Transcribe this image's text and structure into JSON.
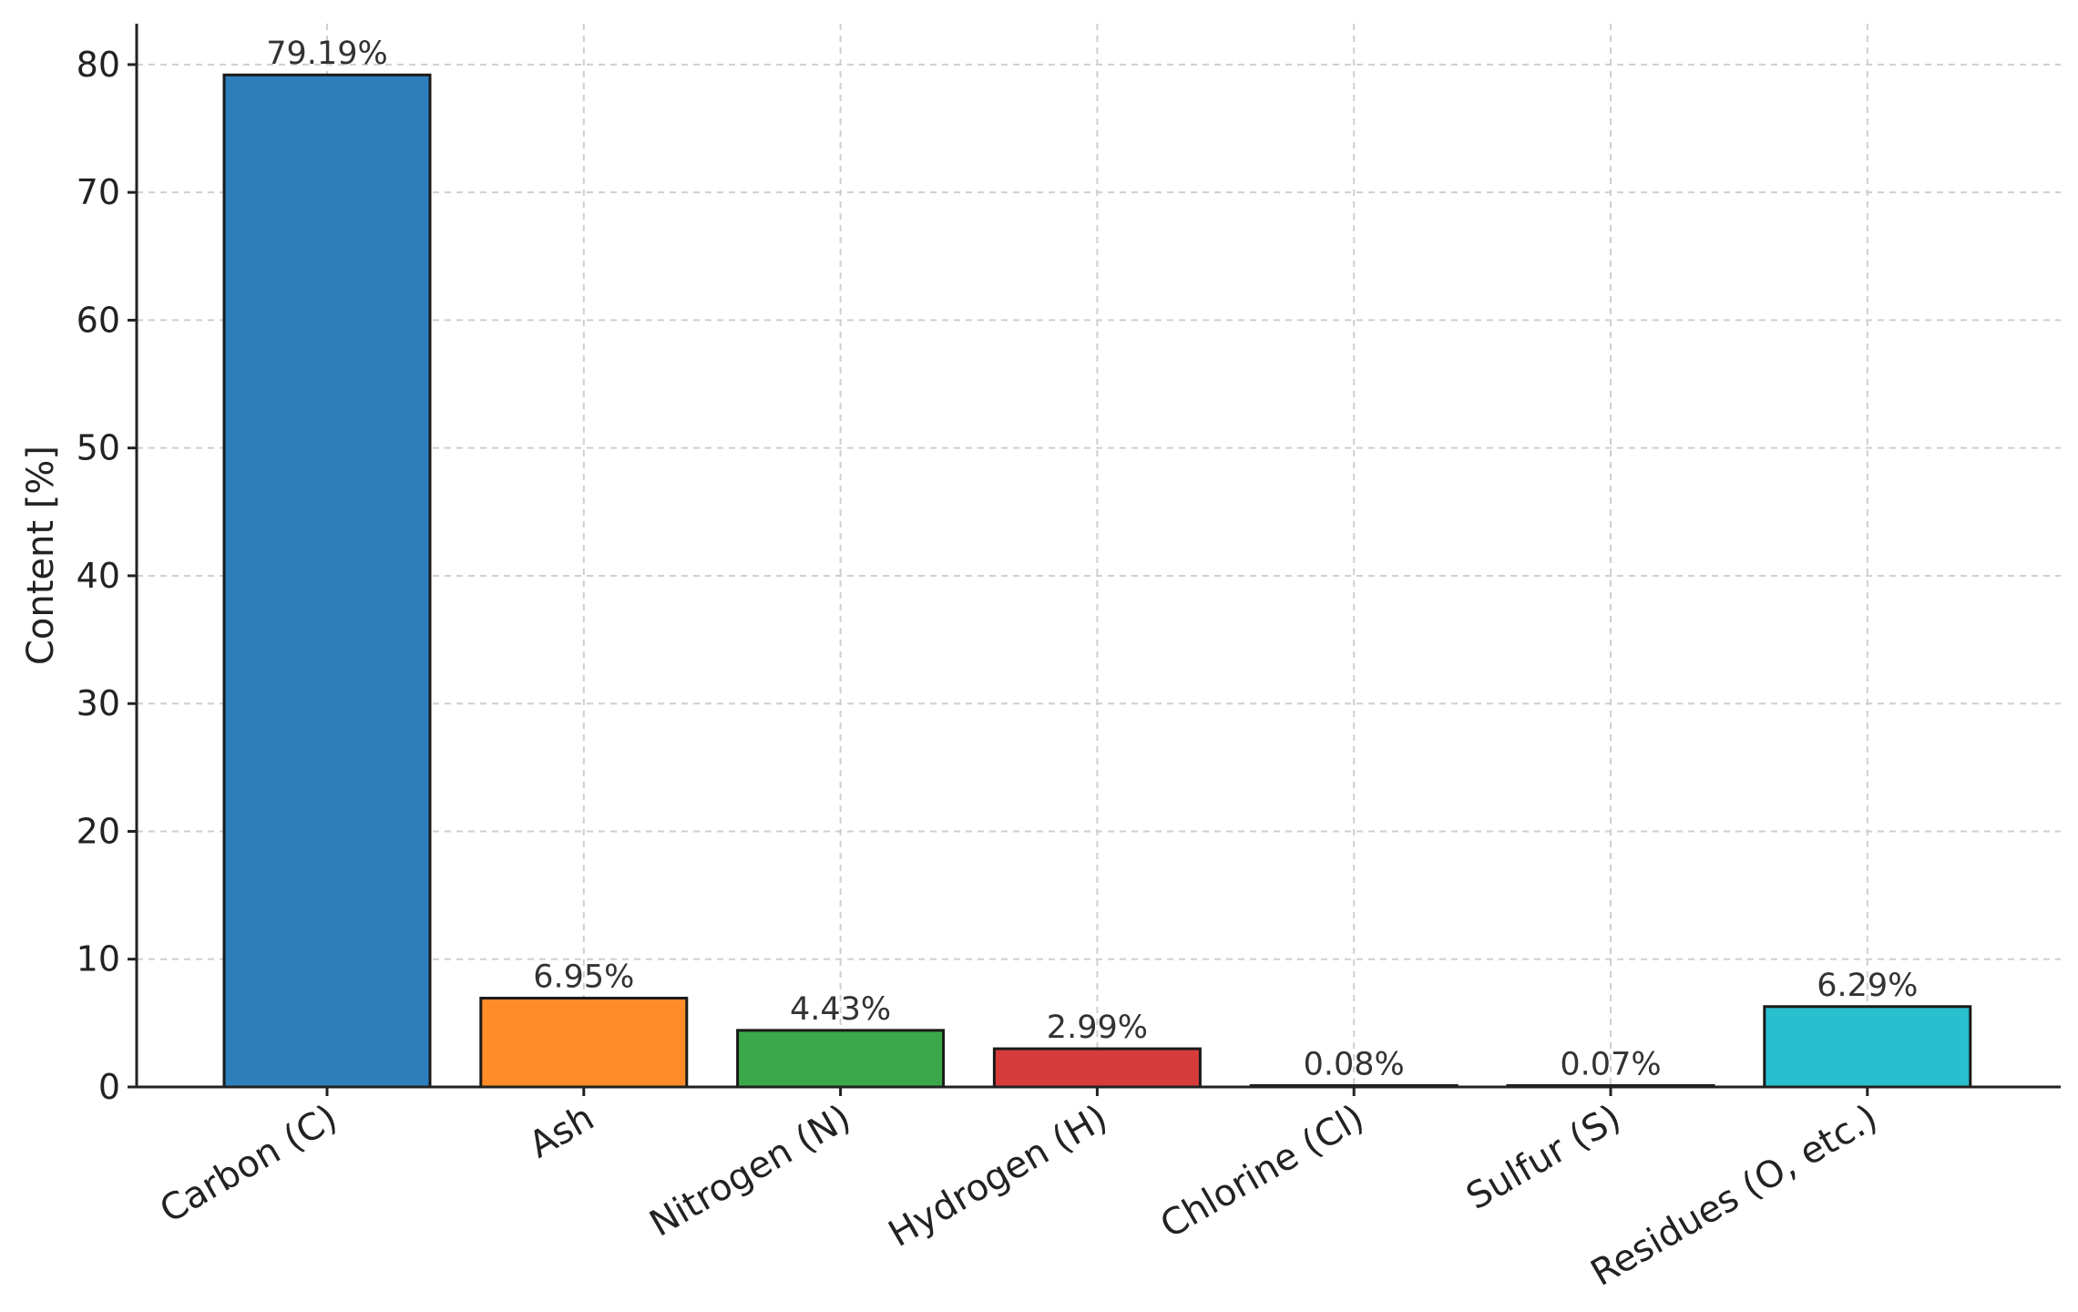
{
  "chart_data": {
    "type": "bar",
    "categories": [
      "Carbon (C)",
      "Ash",
      "Nitrogen (N)",
      "Hydrogen (H)",
      "Chlorine (Cl)",
      "Sulfur (S)",
      "Residues (O, etc.)"
    ],
    "values": [
      79.19,
      6.95,
      4.43,
      2.99,
      0.08,
      0.07,
      6.29
    ],
    "data_labels": [
      "79.19%",
      "6.95%",
      "4.43%",
      "2.99%",
      "0.08%",
      "0.07%",
      "6.29%"
    ],
    "colors": [
      "#2f7ebc",
      "#ff8c28",
      "#3ba94a",
      "#d63c3c",
      "#9a6cc0",
      "#8c5a4e",
      "#2abfcf"
    ],
    "title": "",
    "xlabel": "",
    "ylabel": "Content [%]",
    "ylim": [
      0,
      83.2
    ],
    "yticks": [
      0,
      10,
      20,
      30,
      40,
      50,
      60,
      70,
      80
    ],
    "ytick_labels": [
      "0",
      "10",
      "20",
      "30",
      "40",
      "50",
      "60",
      "70",
      "80"
    ],
    "grid": true,
    "legend": "none"
  }
}
